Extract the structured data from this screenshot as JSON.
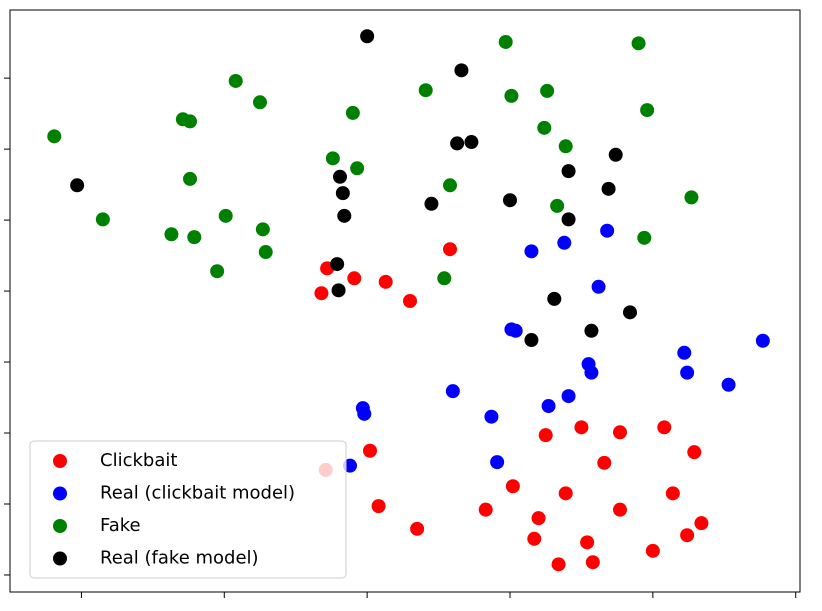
{
  "chart_data": {
    "type": "scatter",
    "xlim": [
      -0.5,
      5.03
    ],
    "ylim": [
      -0.24,
      7.96
    ],
    "xticks": [
      0,
      1,
      2,
      3,
      4,
      5
    ],
    "yticks": [
      0,
      1,
      2,
      3,
      4,
      5,
      6,
      7
    ],
    "legend": "lower left",
    "series": [
      {
        "name": "Clickbait",
        "color": "#ff0000",
        "x": [
          2.58,
          1.72,
          1.91,
          2.13,
          1.68,
          2.3,
          1.71,
          2.02,
          2.08,
          2.35,
          2.83,
          3.02,
          3.2,
          3.17,
          3.34,
          3.25,
          3.39,
          3.5,
          3.54,
          3.58,
          3.66,
          3.77,
          3.77,
          4.0,
          4.08,
          4.14,
          4.24,
          4.29,
          4.34
        ],
        "values": [
          4.59,
          4.32,
          4.18,
          4.13,
          3.97,
          3.86,
          1.48,
          1.75,
          0.97,
          0.65,
          0.92,
          1.25,
          0.8,
          0.51,
          0.15,
          1.97,
          1.15,
          2.08,
          0.46,
          0.18,
          1.58,
          2.01,
          0.92,
          0.34,
          2.08,
          1.15,
          0.56,
          1.73,
          0.73
        ]
      },
      {
        "name": "Real (clickbait model)",
        "color": "#0000ff",
        "x": [
          3.15,
          3.38,
          3.68,
          3.62,
          3.01,
          3.04,
          3.55,
          3.57,
          2.6,
          1.97,
          1.98,
          2.87,
          3.27,
          3.41,
          2.91,
          1.88,
          4.22,
          4.24,
          4.53,
          4.77
        ],
        "values": [
          4.56,
          4.68,
          4.85,
          4.06,
          3.46,
          3.44,
          2.97,
          2.85,
          2.59,
          2.35,
          2.27,
          2.23,
          2.38,
          2.52,
          1.59,
          1.54,
          3.13,
          2.85,
          2.68,
          3.3
        ]
      },
      {
        "name": "Fake",
        "color": "#008000",
        "x": [
          -0.19,
          0.15,
          0.63,
          0.79,
          0.95,
          1.01,
          1.27,
          1.29,
          0.76,
          0.71,
          0.76,
          1.08,
          1.25,
          1.9,
          1.76,
          1.93,
          2.41,
          2.58,
          2.54,
          2.97,
          3.01,
          3.26,
          3.24,
          3.39,
          3.33,
          3.9,
          3.96,
          3.94,
          4.27
        ],
        "values": [
          6.18,
          5.01,
          4.8,
          4.76,
          4.28,
          5.06,
          4.87,
          4.55,
          5.58,
          6.42,
          6.39,
          6.96,
          6.66,
          6.51,
          5.87,
          5.73,
          6.83,
          5.49,
          4.18,
          7.51,
          6.75,
          6.82,
          6.3,
          6.04,
          5.2,
          7.49,
          6.55,
          4.75,
          5.32
        ]
      },
      {
        "name": "Real (fake model)",
        "color": "#000000",
        "x": [
          -0.03,
          2.0,
          2.66,
          2.63,
          2.73,
          1.81,
          1.83,
          1.84,
          1.79,
          1.8,
          2.45,
          3.0,
          3.41,
          3.41,
          3.74,
          3.69,
          3.31,
          3.57,
          3.84,
          3.15
        ],
        "values": [
          5.49,
          7.59,
          7.11,
          6.08,
          6.1,
          5.61,
          5.38,
          5.06,
          4.38,
          4.01,
          5.23,
          5.28,
          5.69,
          5.01,
          5.92,
          5.44,
          3.89,
          3.44,
          3.7,
          3.31
        ]
      }
    ]
  }
}
